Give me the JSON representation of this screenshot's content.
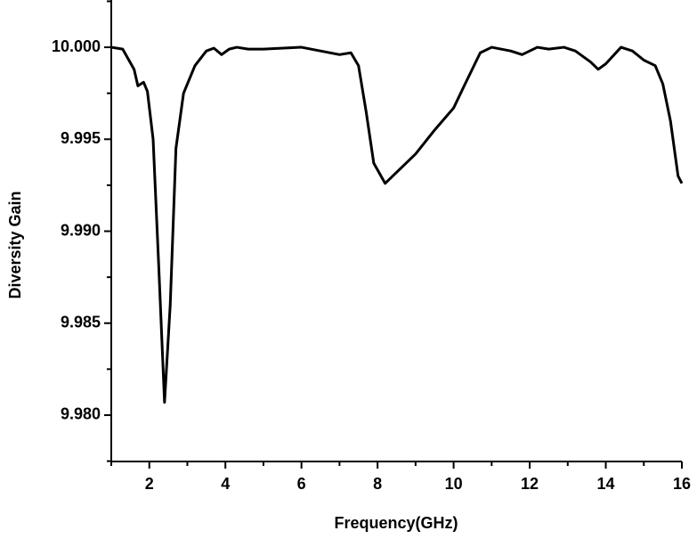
{
  "chart_data": {
    "type": "line",
    "xlabel": "Frequency(GHz)",
    "ylabel": "Diversity Gain",
    "x": [
      1,
      1.3,
      1.6,
      1.7,
      1.85,
      1.95,
      2.1,
      2.25,
      2.4,
      2.55,
      2.7,
      2.9,
      3.2,
      3.5,
      3.7,
      3.9,
      4.1,
      4.3,
      4.6,
      5,
      6,
      6.5,
      7,
      7.3,
      7.5,
      7.7,
      7.9,
      8.2,
      8.5,
      9,
      9.5,
      10,
      10.3,
      10.7,
      11,
      11.5,
      11.8,
      12.2,
      12.5,
      12.9,
      13.2,
      13.6,
      13.8,
      14,
      14.4,
      14.7,
      15,
      15.3,
      15.5,
      15.7,
      15.9,
      16
    ],
    "series": [
      {
        "name": "Diversity Gain",
        "color": "#000000",
        "values": [
          10.0,
          9.9999,
          9.9988,
          9.9979,
          9.9981,
          9.9976,
          9.995,
          9.988,
          9.9807,
          9.986,
          9.9945,
          9.9975,
          9.999,
          9.9998,
          9.99995,
          9.9996,
          9.9999,
          10.0,
          9.9999,
          9.9999,
          10.0,
          9.9998,
          9.9996,
          9.9997,
          9.999,
          9.9965,
          9.9937,
          9.9926,
          9.9932,
          9.9942,
          9.9955,
          9.9967,
          9.998,
          9.9997,
          10.0,
          9.9998,
          9.9996,
          10.0,
          9.9999,
          10.0,
          9.9998,
          9.9992,
          9.9988,
          9.9991,
          10.0,
          9.9998,
          9.9993,
          9.999,
          9.998,
          9.996,
          9.993,
          9.9926
        ]
      }
    ],
    "xlim": [
      1,
      16
    ],
    "xticks": [
      2,
      4,
      6,
      8,
      10,
      12,
      14,
      16
    ],
    "ylim": [
      9.97748,
      10.00257
    ],
    "yticks": [
      {
        "value": 9.98,
        "label": "9.980"
      },
      9.985,
      {
        "value": 9.99,
        "label": "9.990"
      },
      9.995,
      {
        "value": 10,
        "label": "10.000"
      }
    ]
  }
}
